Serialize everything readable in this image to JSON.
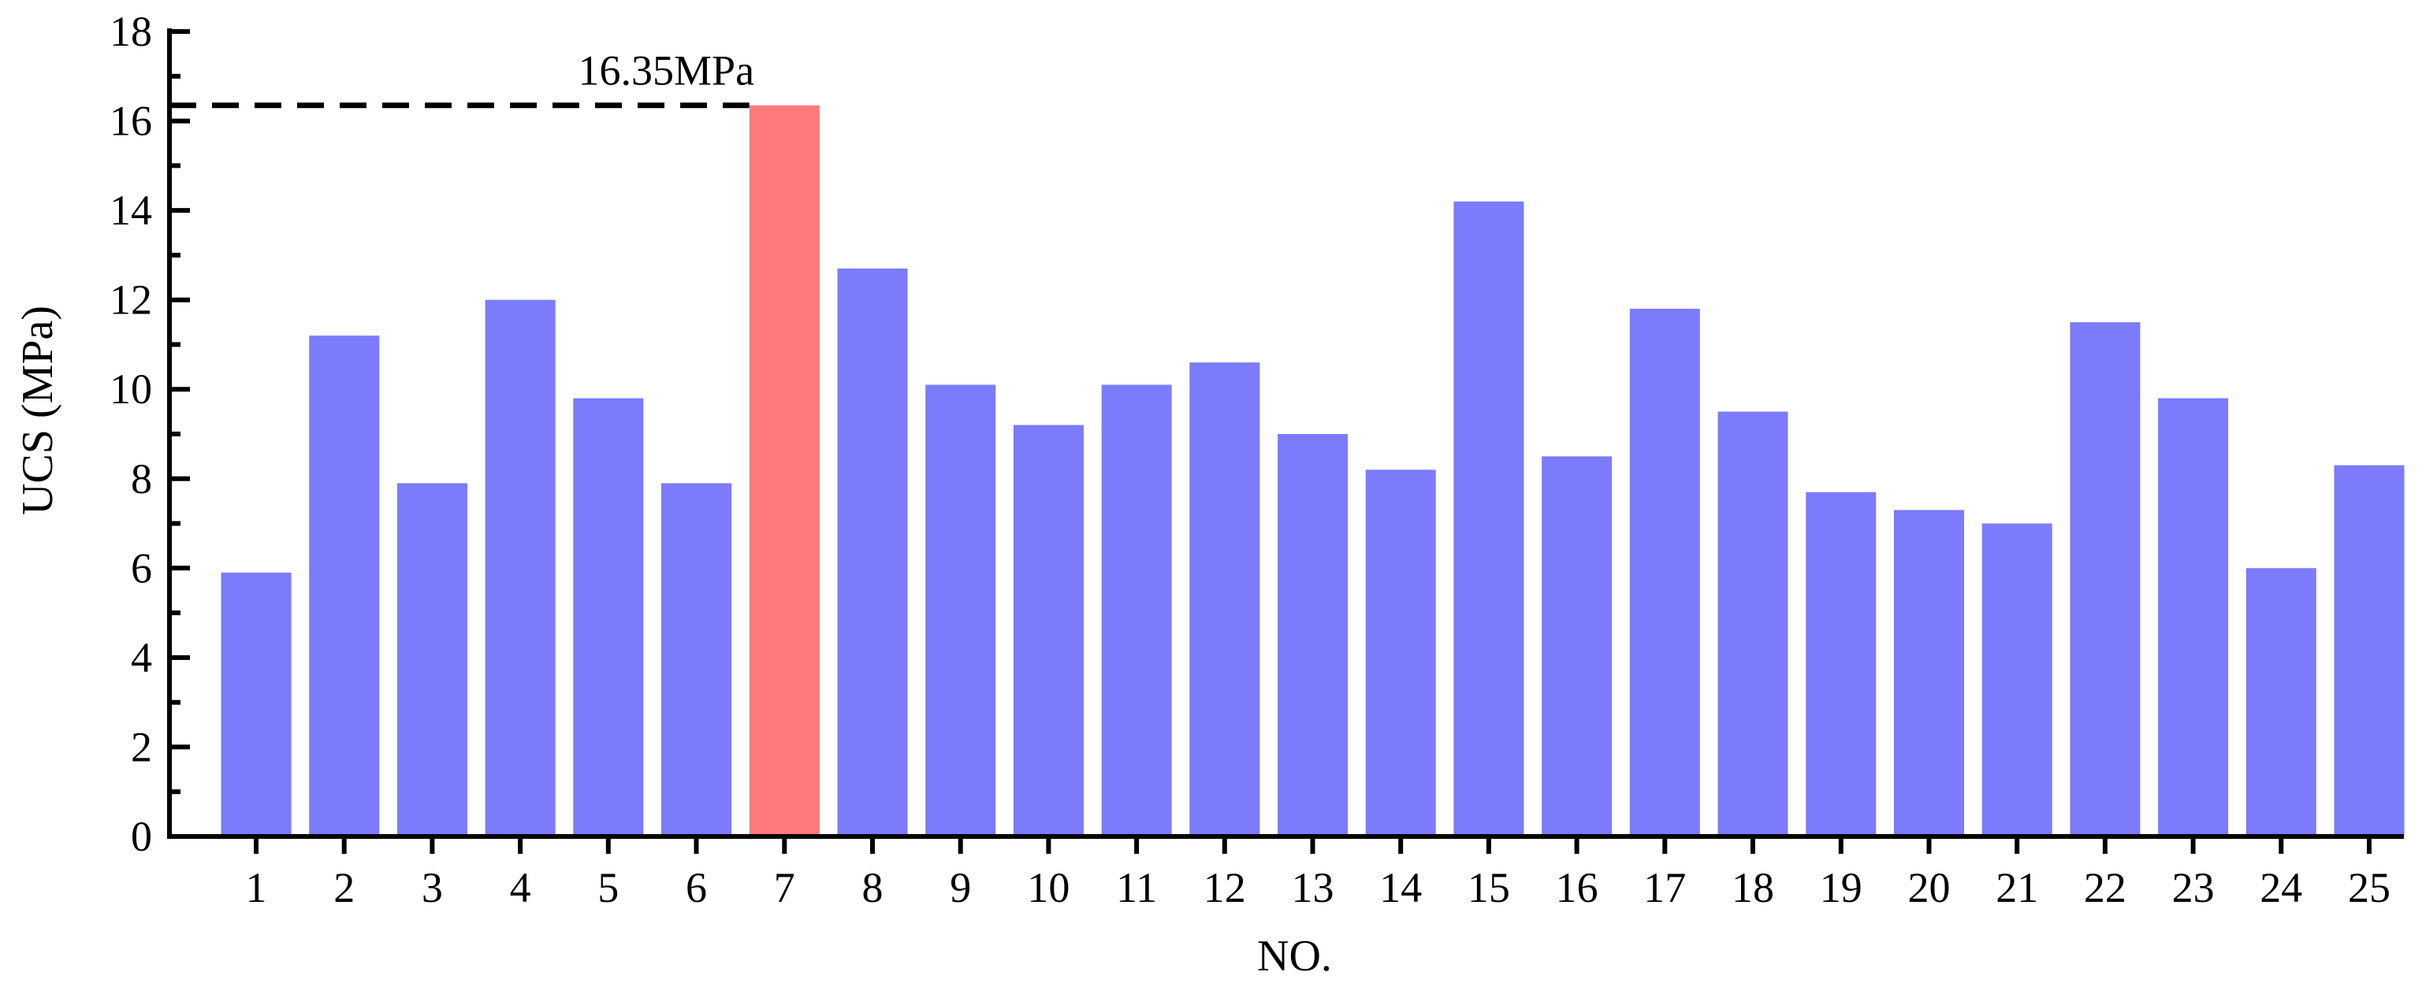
{
  "chart_data": {
    "type": "bar",
    "title": "",
    "xlabel": "NO.",
    "ylabel": "UCS (MPa)",
    "ylim": [
      0,
      18
    ],
    "yticks": [
      0,
      2,
      4,
      6,
      8,
      10,
      12,
      14,
      16,
      18
    ],
    "categories": [
      "1",
      "2",
      "3",
      "4",
      "5",
      "6",
      "7",
      "8",
      "9",
      "10",
      "11",
      "12",
      "13",
      "14",
      "15",
      "16",
      "17",
      "18",
      "19",
      "20",
      "21",
      "22",
      "23",
      "24",
      "25"
    ],
    "values": [
      5.9,
      11.2,
      7.9,
      12.0,
      9.8,
      7.9,
      16.35,
      12.7,
      10.1,
      9.2,
      10.1,
      10.6,
      9.0,
      8.2,
      14.2,
      8.5,
      11.8,
      9.5,
      7.7,
      7.3,
      7.0,
      11.5,
      9.8,
      6.0,
      8.3
    ],
    "bar_color": "#7B7BFC",
    "highlight_color": "#FF7B7B",
    "highlight_index": 6,
    "grid": false,
    "legend": "none",
    "annotation": {
      "text": "16.35MPa",
      "value": 16.35,
      "line_style": "dashed"
    }
  }
}
